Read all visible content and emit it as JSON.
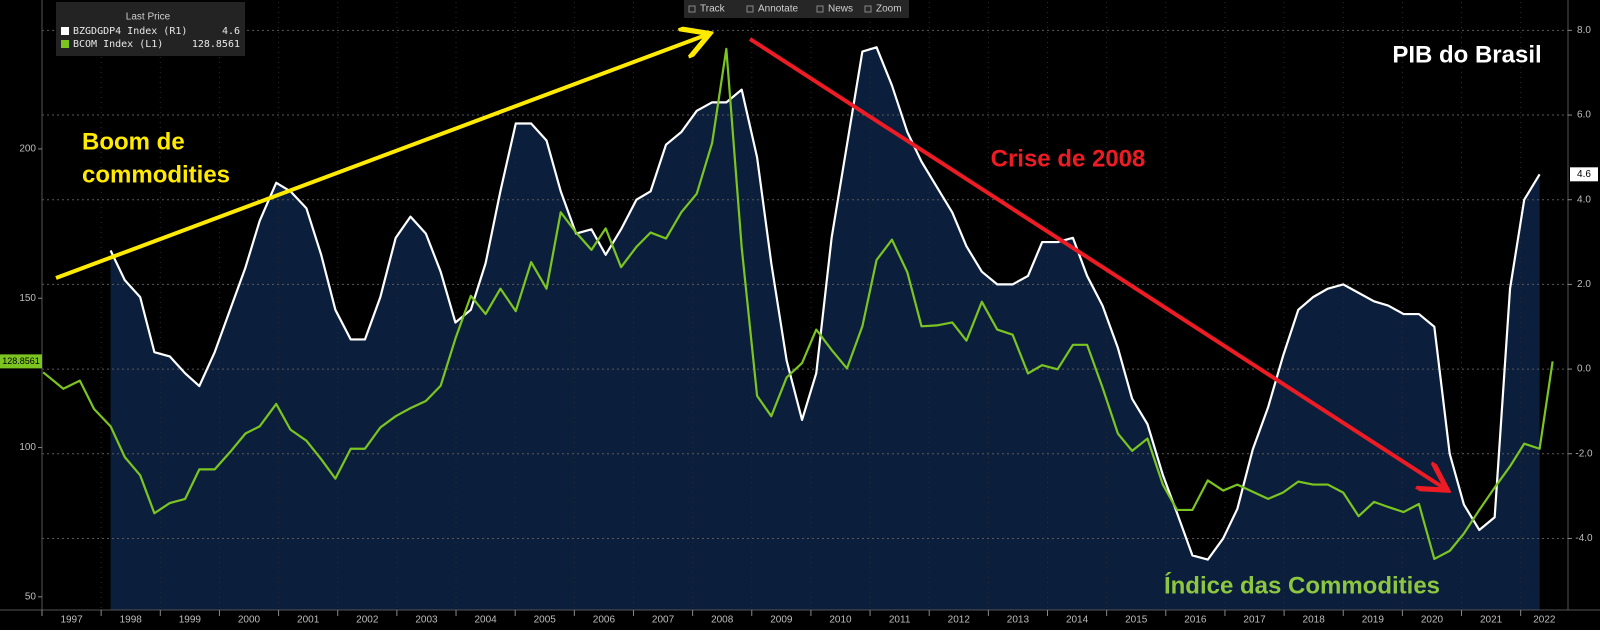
{
  "chart_data": {
    "type": "line",
    "title": "PIB do Brasil",
    "legend_title": "Last Price",
    "x": [
      1997.02,
      1997.36,
      1997.64,
      1997.88,
      1998.16,
      1998.4,
      1998.66,
      1998.9,
      1999.16,
      1999.42,
      1999.66,
      1999.92,
      2000.18,
      2000.44,
      2000.68,
      2000.96,
      2001.2,
      2001.47,
      2001.72,
      2001.96,
      2002.22,
      2002.46,
      2002.72,
      2002.98,
      2003.23,
      2003.49,
      2003.74,
      2003.99,
      2004.25,
      2004.5,
      2004.75,
      2005.01,
      2005.27,
      2005.53,
      2005.77,
      2006.03,
      2006.29,
      2006.53,
      2006.79,
      2007.05,
      2007.29,
      2007.55,
      2007.81,
      2008.07,
      2008.33,
      2008.57,
      2008.83,
      2009.09,
      2009.33,
      2009.59,
      2009.85,
      2010.09,
      2010.35,
      2010.61,
      2010.87,
      2011.11,
      2011.37,
      2011.63,
      2011.87,
      2012.13,
      2012.39,
      2012.63,
      2012.89,
      2013.15,
      2013.41,
      2013.67,
      2013.91,
      2014.17,
      2014.43,
      2014.67,
      2014.93,
      2015.19,
      2015.43,
      2015.69,
      2015.95,
      2016.19,
      2016.45,
      2016.71,
      2016.97,
      2017.21,
      2017.47,
      2017.73,
      2017.98,
      2018.24,
      2018.49,
      2018.74,
      2019.0,
      2019.26,
      2019.52,
      2019.76,
      2020.02,
      2020.28,
      2020.54,
      2020.8,
      2021.04,
      2021.3,
      2021.56,
      2021.82,
      2022.06,
      2022.32,
      2022.54
    ],
    "xlim": [
      1997,
      2022.8
    ],
    "xticks": [
      1997,
      1998,
      1999,
      2000,
      2001,
      2002,
      2003,
      2004,
      2005,
      2006,
      2007,
      2008,
      2009,
      2010,
      2011,
      2012,
      2013,
      2014,
      2015,
      2016,
      2017,
      2018,
      2019,
      2020,
      2021,
      2022
    ],
    "ylim": [
      45.6,
      249.2
    ],
    "yticks": [
      50,
      100,
      150,
      200
    ],
    "y2lim": [
      -5.69,
      8.67
    ],
    "y2ticks": [
      {
        "value": -4,
        "label": "-4.0"
      },
      {
        "value": -2,
        "label": "-2.0"
      },
      {
        "value": 0,
        "label": "0.0"
      },
      {
        "value": 2,
        "label": "2.0"
      },
      {
        "value": 4,
        "label": "4.0"
      },
      {
        "value": 6,
        "label": "6.0"
      },
      {
        "value": 8,
        "label": "8.0"
      }
    ],
    "grid": true,
    "series": [
      {
        "name": "BZGDGDP4 Index (R1)",
        "axis": "y2",
        "color": "#ffffff",
        "fill": "#0b1f3d",
        "last_value": 4.6,
        "values": [
          null,
          null,
          null,
          null,
          2.8,
          2.1,
          1.7,
          0.4,
          0.3,
          -0.1,
          -0.4,
          0.4,
          1.4,
          2.4,
          3.5,
          4.4,
          4.2,
          3.8,
          2.7,
          1.4,
          0.7,
          0.7,
          1.7,
          3.1,
          3.6,
          3.2,
          2.3,
          1.1,
          1.4,
          2.5,
          4.2,
          5.8,
          5.8,
          5.4,
          4.2,
          3.2,
          3.3,
          2.7,
          3.3,
          4.0,
          4.2,
          5.3,
          5.6,
          6.1,
          6.3,
          6.3,
          6.6,
          5.0,
          2.5,
          0.2,
          -1.2,
          -0.1,
          3.1,
          5.3,
          7.5,
          7.6,
          6.7,
          5.6,
          4.9,
          4.3,
          3.7,
          2.9,
          2.3,
          2.0,
          2.0,
          2.2,
          3.0,
          3.0,
          3.1,
          2.2,
          1.5,
          0.5,
          -0.7,
          -1.3,
          -2.5,
          -3.4,
          -4.4,
          -4.5,
          -4.0,
          -3.3,
          -1.9,
          -0.9,
          0.3,
          1.4,
          1.7,
          1.9,
          2.0,
          1.8,
          1.6,
          1.5,
          1.3,
          1.3,
          1.0,
          -2.0,
          -3.2,
          -3.8,
          -3.5,
          1.9,
          4.0,
          4.6,
          null
        ]
      },
      {
        "name": "BCOM Index (L1)",
        "color": "#7cc520",
        "last_value": 128.8561,
        "values": [
          125.2,
          119.7,
          122.4,
          112.9,
          107.1,
          96.8,
          90.7,
          78.0,
          81.4,
          82.8,
          92.7,
          92.7,
          98.5,
          104.7,
          107.1,
          114.6,
          106.0,
          102.3,
          96.1,
          89.6,
          99.6,
          99.6,
          106.7,
          110.5,
          113.2,
          115.6,
          120.7,
          136.5,
          150.8,
          144.7,
          153.2,
          145.7,
          162.1,
          153.2,
          178.8,
          172.0,
          166.2,
          173.4,
          160.4,
          167.2,
          172.0,
          170.0,
          178.8,
          185.0,
          202.0,
          233.5,
          166.9,
          117.3,
          110.5,
          123.5,
          128.3,
          139.5,
          132.7,
          126.5,
          140.6,
          162.8,
          169.6,
          158.7,
          140.6,
          140.9,
          141.9,
          135.8,
          148.8,
          139.5,
          137.8,
          124.8,
          127.6,
          126.2,
          134.4,
          134.4,
          120.1,
          104.7,
          98.9,
          103.0,
          87.6,
          79.1,
          79.1,
          89.0,
          85.6,
          87.6,
          85.2,
          82.8,
          84.9,
          88.6,
          87.6,
          87.6,
          84.9,
          77.0,
          81.8,
          80.1,
          78.4,
          81.1,
          62.7,
          65.4,
          71.2,
          79.1,
          86.6,
          93.7,
          101.3,
          99.6,
          128.8561
        ]
      }
    ],
    "annotations": [
      {
        "text": [
          "Boom de",
          "commodities"
        ],
        "color": "#ffea00"
      },
      {
        "text": "Crise de 2008",
        "color": "#ed1c24"
      },
      {
        "text": "Índice das Commodities",
        "color": "#8dc63f"
      }
    ]
  },
  "toolbar": [
    "Track",
    "Annotate",
    "News",
    "Zoom"
  ]
}
